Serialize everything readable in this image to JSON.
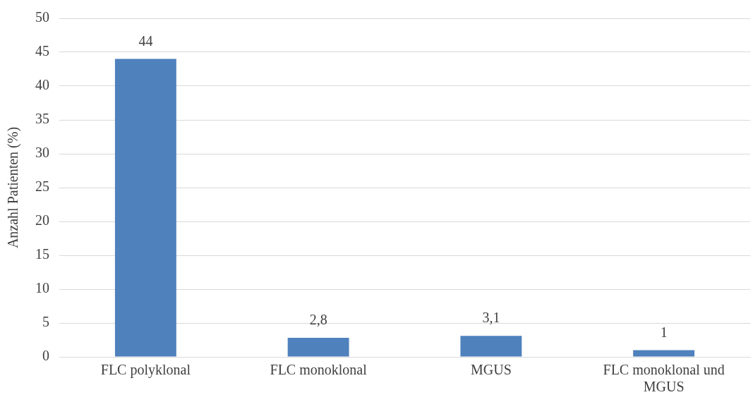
{
  "chart_data": {
    "type": "bar",
    "ylabel": "Anzahl Patienten (%)",
    "categories": [
      "FLC polyklonal",
      "FLC monoklonal",
      "MGUS",
      "FLC monoklonal und MGUS"
    ],
    "values": [
      44,
      2.8,
      3.1,
      1
    ],
    "color": "#4f81bd",
    "value_labels": [
      "44",
      "2,8",
      "3,1",
      "1"
    ],
    "ylim": [
      0,
      50
    ],
    "yticks": [
      0,
      5,
      10,
      15,
      20,
      25,
      30,
      35,
      40,
      45,
      50
    ],
    "grid": "y",
    "legend": false
  }
}
